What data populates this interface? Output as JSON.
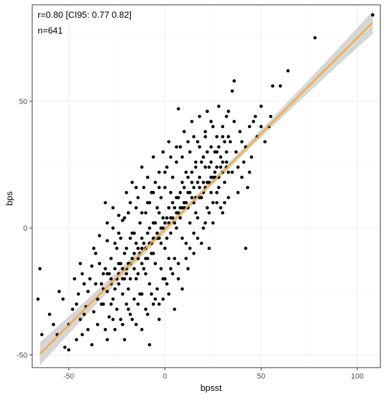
{
  "chart_data": {
    "type": "scatter",
    "xlabel": "bpsst",
    "ylabel": "bps",
    "xlim": [
      -69,
      112
    ],
    "ylim": [
      -55,
      88
    ],
    "x_ticks": [
      -50,
      0,
      50,
      100
    ],
    "x_tick_labels": [
      "-50",
      "0",
      "50",
      "100"
    ],
    "y_ticks": [
      -50,
      0,
      50
    ],
    "y_tick_labels": [
      "-50",
      "0",
      "50"
    ],
    "grid": true,
    "annotations": [
      "r=0.80 [CI95: 0.77 0.82]",
      "n=641"
    ],
    "colors": {
      "points": "#000000",
      "fit_line": "#f5a623",
      "confidence_band": "#c8c8c8",
      "grid": "#ebebeb",
      "panel_border": "#333333"
    },
    "fit": {
      "x_range": [
        -65,
        108
      ],
      "intercept": -0.5,
      "slope": 0.755,
      "ci_halfwidth_center": 1.2,
      "ci_halfwidth_ends": 4.5
    },
    "point_count": 641,
    "points": [
      [
        -65,
        -16
      ],
      [
        -66,
        -28
      ],
      [
        -64,
        -42
      ],
      [
        -58,
        -38
      ],
      [
        -55,
        -25
      ],
      [
        -52,
        -47
      ],
      [
        -50,
        -48
      ],
      [
        -48,
        -32
      ],
      [
        -47,
        -20
      ],
      [
        -46,
        -30
      ],
      [
        -44,
        -36
      ],
      [
        -43,
        -42
      ],
      [
        -42,
        -22
      ],
      [
        -40,
        -25
      ],
      [
        -40,
        -40
      ],
      [
        -38,
        -46
      ],
      [
        -38,
        -15
      ],
      [
        -37,
        -33
      ],
      [
        -36,
        -10
      ],
      [
        -35,
        -28
      ],
      [
        -35,
        -38
      ],
      [
        -34,
        -3
      ],
      [
        -33,
        -22
      ],
      [
        -32,
        -18
      ],
      [
        -32,
        -30
      ],
      [
        -31,
        10
      ],
      [
        -31,
        -40
      ],
      [
        -30,
        -5
      ],
      [
        -30,
        -25
      ],
      [
        -29,
        -35
      ],
      [
        -28,
        -12
      ],
      [
        -28,
        -20
      ],
      [
        -27,
        0
      ],
      [
        -27,
        -28
      ],
      [
        -26,
        -16
      ],
      [
        -26,
        -40
      ],
      [
        -25,
        -8
      ],
      [
        -25,
        -32
      ],
      [
        -24,
        5
      ],
      [
        -24,
        -22
      ],
      [
        -23,
        -14
      ],
      [
        -23,
        -36
      ],
      [
        -22,
        3
      ],
      [
        -22,
        -26
      ],
      [
        -21,
        -10
      ],
      [
        -21,
        -44
      ],
      [
        -20,
        14
      ],
      [
        -20,
        -18
      ],
      [
        -20,
        -30
      ],
      [
        -19,
        6
      ],
      [
        -19,
        -24
      ],
      [
        -18,
        -4
      ],
      [
        -18,
        -34
      ],
      [
        -17,
        18
      ],
      [
        -17,
        -12
      ],
      [
        -16,
        -2
      ],
      [
        -16,
        -28
      ],
      [
        -15,
        8
      ],
      [
        -15,
        -20
      ],
      [
        -15,
        -38
      ],
      [
        -14,
        12
      ],
      [
        -14,
        -8
      ],
      [
        -13,
        2
      ],
      [
        -13,
        -26
      ],
      [
        -12,
        24
      ],
      [
        -12,
        -14
      ],
      [
        -12,
        -40
      ],
      [
        -11,
        16
      ],
      [
        -11,
        -6
      ],
      [
        -10,
        6
      ],
      [
        -10,
        -18
      ],
      [
        -10,
        -32
      ],
      [
        -9,
        20
      ],
      [
        -9,
        -2
      ],
      [
        -8,
        10
      ],
      [
        -8,
        -22
      ],
      [
        -8,
        -46
      ],
      [
        -7,
        14
      ],
      [
        -7,
        -10
      ],
      [
        -6,
        28
      ],
      [
        -6,
        2
      ],
      [
        -6,
        -30
      ],
      [
        -5,
        18
      ],
      [
        -5,
        -14
      ],
      [
        -4,
        8
      ],
      [
        -4,
        -24
      ],
      [
        -3,
        22
      ],
      [
        -3,
        -4
      ],
      [
        -3,
        -36
      ],
      [
        -2,
        12
      ],
      [
        -2,
        -16
      ],
      [
        -1,
        30
      ],
      [
        -1,
        0
      ],
      [
        -1,
        -28
      ],
      [
        0,
        16
      ],
      [
        0,
        -8
      ],
      [
        0,
        -20
      ],
      [
        1,
        24
      ],
      [
        1,
        4
      ],
      [
        2,
        34
      ],
      [
        2,
        -12
      ],
      [
        2,
        -26
      ],
      [
        3,
        14
      ],
      [
        3,
        -2
      ],
      [
        4,
        20
      ],
      [
        4,
        -18
      ],
      [
        5,
        8
      ],
      [
        5,
        -32
      ],
      [
        6,
        26
      ],
      [
        6,
        0
      ],
      [
        7,
        47
      ],
      [
        7,
        12
      ],
      [
        7,
        -14
      ],
      [
        8,
        32
      ],
      [
        8,
        4
      ],
      [
        9,
        18
      ],
      [
        9,
        -24
      ],
      [
        10,
        38
      ],
      [
        10,
        8
      ],
      [
        11,
        22
      ],
      [
        11,
        -6
      ],
      [
        12,
        14
      ],
      [
        12,
        -16
      ],
      [
        13,
        30
      ],
      [
        13,
        2
      ],
      [
        14,
        42
      ],
      [
        14,
        18
      ],
      [
        15,
        10
      ],
      [
        15,
        -10
      ],
      [
        16,
        26
      ],
      [
        16,
        6
      ],
      [
        17,
        34
      ],
      [
        17,
        -4
      ],
      [
        18,
        20
      ],
      [
        18,
        44
      ],
      [
        19,
        12
      ],
      [
        20,
        28
      ],
      [
        20,
        0
      ],
      [
        21,
        36
      ],
      [
        21,
        16
      ],
      [
        22,
        46
      ],
      [
        22,
        8
      ],
      [
        23,
        24
      ],
      [
        23,
        -8
      ],
      [
        24,
        32
      ],
      [
        24,
        14
      ],
      [
        25,
        40
      ],
      [
        25,
        2
      ],
      [
        26,
        20
      ],
      [
        27,
        30
      ],
      [
        27,
        10
      ],
      [
        28,
        48
      ],
      [
        28,
        16
      ],
      [
        29,
        24
      ],
      [
        30,
        36
      ],
      [
        30,
        6
      ],
      [
        31,
        18
      ],
      [
        32,
        44
      ],
      [
        32,
        26
      ],
      [
        33,
        12
      ],
      [
        34,
        34
      ],
      [
        35,
        22
      ],
      [
        35,
        54
      ],
      [
        36,
        58
      ],
      [
        37,
        30
      ],
      [
        38,
        14
      ],
      [
        39,
        38
      ],
      [
        40,
        20
      ],
      [
        41,
        26
      ],
      [
        42,
        32
      ],
      [
        42,
        -8
      ],
      [
        43,
        16
      ],
      [
        44,
        40
      ],
      [
        45,
        28
      ],
      [
        47,
        44
      ],
      [
        48,
        36
      ],
      [
        50,
        48
      ],
      [
        52,
        34
      ],
      [
        54,
        40
      ],
      [
        56,
        56
      ],
      [
        60,
        56
      ],
      [
        64,
        62
      ],
      [
        78,
        75
      ],
      [
        108,
        84
      ],
      [
        -60,
        -34
      ],
      [
        -56,
        -42
      ],
      [
        -53,
        -28
      ],
      [
        -45,
        -26
      ],
      [
        -41,
        -31
      ],
      [
        -39,
        -20
      ],
      [
        -36,
        -22
      ],
      [
        -34,
        -14
      ],
      [
        -33,
        -30
      ],
      [
        -31,
        -16
      ],
      [
        -29,
        -18
      ],
      [
        -28,
        -30
      ],
      [
        -26,
        -6
      ],
      [
        -25,
        -20
      ],
      [
        -24,
        -14
      ],
      [
        -23,
        -4
      ],
      [
        -22,
        -16
      ],
      [
        -21,
        -20
      ],
      [
        -20,
        -8
      ],
      [
        -19,
        -14
      ],
      [
        -18,
        -20
      ],
      [
        -17,
        -2
      ],
      [
        -16,
        -16
      ],
      [
        -15,
        -6
      ],
      [
        -14,
        -18
      ],
      [
        -13,
        -10
      ],
      [
        -12,
        -4
      ],
      [
        -11,
        -16
      ],
      [
        -10,
        -8
      ],
      [
        -9,
        -12
      ],
      [
        -8,
        0
      ],
      [
        -7,
        -6
      ],
      [
        -6,
        -10
      ],
      [
        -5,
        2
      ],
      [
        -4,
        -4
      ],
      [
        -3,
        6
      ],
      [
        -2,
        -6
      ],
      [
        -1,
        4
      ],
      [
        0,
        2
      ],
      [
        1,
        -4
      ],
      [
        2,
        8
      ],
      [
        3,
        4
      ],
      [
        4,
        10
      ],
      [
        5,
        2
      ],
      [
        6,
        12
      ],
      [
        7,
        6
      ],
      [
        8,
        14
      ],
      [
        9,
        8
      ],
      [
        10,
        16
      ],
      [
        11,
        10
      ],
      [
        12,
        20
      ],
      [
        13,
        14
      ],
      [
        14,
        22
      ],
      [
        15,
        16
      ],
      [
        16,
        24
      ],
      [
        17,
        18
      ],
      [
        18,
        12
      ],
      [
        19,
        26
      ],
      [
        20,
        18
      ],
      [
        21,
        24
      ],
      [
        22,
        30
      ],
      [
        23,
        18
      ],
      [
        24,
        26
      ],
      [
        25,
        20
      ],
      [
        26,
        30
      ],
      [
        27,
        24
      ],
      [
        28,
        32
      ],
      [
        29,
        28
      ],
      [
        30,
        26
      ],
      [
        31,
        34
      ],
      [
        32,
        30
      ],
      [
        33,
        36
      ],
      [
        -44,
        -14
      ],
      [
        -42,
        -34
      ],
      [
        -37,
        -8
      ],
      [
        -30,
        -44
      ],
      [
        -27,
        -36
      ],
      [
        -22,
        -38
      ],
      [
        -19,
        -32
      ],
      [
        -17,
        -36
      ],
      [
        -14,
        -30
      ],
      [
        -12,
        -26
      ],
      [
        -9,
        -34
      ],
      [
        -7,
        -26
      ],
      [
        -5,
        -28
      ],
      [
        -3,
        -30
      ],
      [
        -1,
        -20
      ],
      [
        1,
        -22
      ],
      [
        3,
        -16
      ],
      [
        5,
        -12
      ],
      [
        7,
        -20
      ],
      [
        9,
        -4
      ],
      [
        11,
        -12
      ],
      [
        13,
        -8
      ],
      [
        15,
        -2
      ],
      [
        17,
        4
      ],
      [
        19,
        -6
      ],
      [
        21,
        2
      ],
      [
        23,
        6
      ],
      [
        25,
        10
      ],
      [
        27,
        14
      ],
      [
        29,
        8
      ],
      [
        31,
        10
      ],
      [
        33,
        22
      ],
      [
        -30,
        2
      ],
      [
        -27,
        8
      ],
      [
        -24,
        -2
      ],
      [
        -21,
        4
      ],
      [
        -18,
        10
      ],
      [
        -15,
        16
      ],
      [
        -12,
        6
      ],
      [
        -9,
        10
      ],
      [
        -6,
        14
      ],
      [
        -3,
        16
      ],
      [
        0,
        22
      ],
      [
        3,
        28
      ],
      [
        6,
        32
      ],
      [
        9,
        28
      ],
      [
        12,
        34
      ],
      [
        15,
        36
      ],
      [
        18,
        32
      ],
      [
        21,
        38
      ],
      [
        24,
        42
      ],
      [
        27,
        36
      ],
      [
        30,
        40
      ],
      [
        33,
        46
      ],
      [
        36,
        42
      ],
      [
        38,
        24
      ],
      [
        40,
        34
      ],
      [
        44,
        22
      ],
      [
        46,
        42
      ],
      [
        50,
        40
      ],
      [
        55,
        44
      ],
      [
        -50,
        -38
      ],
      [
        -46,
        -44
      ],
      [
        -43,
        -18
      ],
      [
        -2,
        0
      ],
      [
        -4,
        -2
      ],
      [
        -6,
        -4
      ],
      [
        -8,
        -6
      ],
      [
        -10,
        -12
      ],
      [
        -12,
        -8
      ],
      [
        -14,
        -12
      ],
      [
        -16,
        -10
      ],
      [
        -18,
        -14
      ],
      [
        -20,
        -16
      ],
      [
        -22,
        -20
      ],
      [
        -24,
        -18
      ],
      [
        -26,
        -24
      ],
      [
        -28,
        -22
      ],
      [
        -30,
        -18
      ],
      [
        -32,
        -24
      ],
      [
        2,
        2
      ],
      [
        4,
        4
      ],
      [
        6,
        6
      ],
      [
        8,
        8
      ],
      [
        10,
        10
      ],
      [
        12,
        8
      ],
      [
        14,
        12
      ],
      [
        16,
        12
      ],
      [
        18,
        16
      ],
      [
        20,
        14
      ],
      [
        22,
        18
      ],
      [
        24,
        20
      ],
      [
        26,
        22
      ],
      [
        28,
        20
      ],
      [
        30,
        22
      ],
      [
        32,
        24
      ]
    ]
  }
}
